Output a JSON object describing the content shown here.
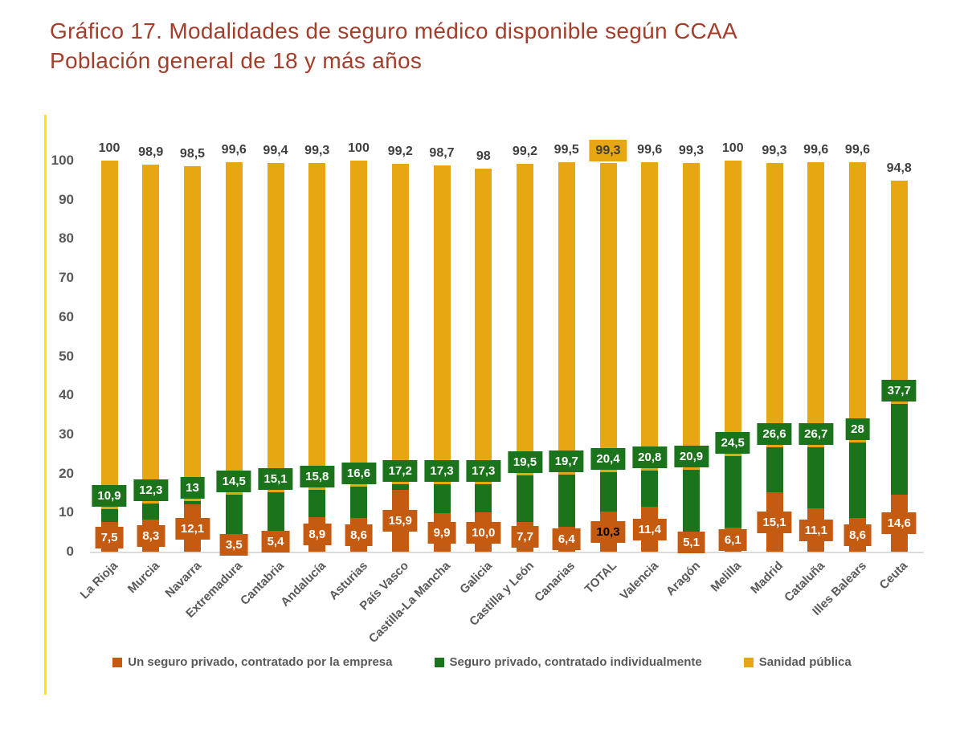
{
  "title": {
    "line1": "Gráfico 17. Modalidades de seguro médico disponible según CCAA",
    "line2": "Población general de 18 y más años"
  },
  "colors": {
    "title_red": "#A33E2B",
    "gold": "#E6A712",
    "green": "#1B741B",
    "orange": "#C55A11",
    "axis_text": "#595959",
    "data_label_dark": "#3F3F3F",
    "total_label_text": "#000000",
    "baseline_gray": "#DBDBDB",
    "accent_line_yellow": "#FFE400"
  },
  "legend": {
    "items": [
      {
        "label": "Un seguro privado, contratado por la empresa",
        "series_key": "empresa",
        "color": "#C55A11"
      },
      {
        "label": "Seguro privado, contratado individualmente",
        "series_key": "individual",
        "color": "#1B741B"
      },
      {
        "label": "Sanidad pública",
        "series_key": "publica",
        "color": "#E6A712"
      }
    ]
  },
  "chart_data": {
    "type": "bar",
    "subtype": "overlapping-columns",
    "title": "Gráfico 17. Modalidades de seguro médico disponible según CCAA — Población general de 18 y más años",
    "xlabel": "",
    "ylabel": "",
    "ylim": [
      0,
      100
    ],
    "yticks": [
      0,
      10,
      20,
      30,
      40,
      50,
      60,
      70,
      80,
      90,
      100
    ],
    "grid": false,
    "legend_position": "bottom",
    "highlight_category": "TOTAL",
    "categories": [
      "La Rioja",
      "Murcia",
      "Navarra",
      "Extremadura",
      "Cantabria",
      "Andalucía",
      "Asturias",
      "País Vasco",
      "Castilla-La Mancha",
      "Galicia",
      "Castilla y León",
      "Canarias",
      "TOTAL",
      "Valencia",
      "Aragón",
      "Melilla",
      "Madrid",
      "Cataluña",
      "Illes Balears",
      "Ceuta"
    ],
    "series": [
      {
        "key": "empresa",
        "name": "Un seguro privado, contratado por la empresa",
        "color": "#C55A11",
        "values": [
          7.5,
          8.3,
          12.1,
          3.5,
          5.4,
          8.9,
          8.6,
          15.9,
          9.9,
          10.0,
          7.7,
          6.4,
          10.3,
          11.4,
          5.1,
          6.1,
          15.1,
          11.1,
          8.6,
          14.6
        ],
        "labels": [
          "7,5",
          "8,3",
          "12,1",
          "3,5",
          "5,4",
          "8,9",
          "8,6",
          "15,9",
          "9,9",
          "10,0",
          "7,7",
          "6,4",
          "10,3",
          "11,4",
          "5,1",
          "6,1",
          "15,1",
          "11,1",
          "8,6",
          "14,6"
        ]
      },
      {
        "key": "individual",
        "name": "Seguro privado, contratado individualmente",
        "color": "#1B741B",
        "values": [
          10.9,
          12.3,
          13,
          14.5,
          15.1,
          15.8,
          16.6,
          17.2,
          17.3,
          17.3,
          19.5,
          19.7,
          20.4,
          20.8,
          20.9,
          24.5,
          26.6,
          26.7,
          28,
          37.7
        ],
        "labels": [
          "10,9",
          "12,3",
          "13",
          "14,5",
          "15,1",
          "15,8",
          "16,6",
          "17,2",
          "17,3",
          "17,3",
          "19,5",
          "19,7",
          "20,4",
          "20,8",
          "20,9",
          "24,5",
          "26,6",
          "26,7",
          "28",
          "37,7"
        ]
      },
      {
        "key": "publica",
        "name": "Sanidad pública",
        "color": "#E6A712",
        "values": [
          100,
          98.9,
          98.5,
          99.6,
          99.4,
          99.3,
          100,
          99.2,
          98.7,
          98,
          99.2,
          99.5,
          99.3,
          99.6,
          99.3,
          100,
          99.3,
          99.6,
          99.6,
          94.8
        ],
        "labels": [
          "100",
          "98,9",
          "98,5",
          "99,6",
          "99,4",
          "99,3",
          "100",
          "99,2",
          "98,7",
          "98",
          "99,2",
          "99,5",
          "99,3",
          "99,6",
          "99,3",
          "100",
          "99,3",
          "99,6",
          "99,6",
          "94,8"
        ]
      }
    ]
  }
}
